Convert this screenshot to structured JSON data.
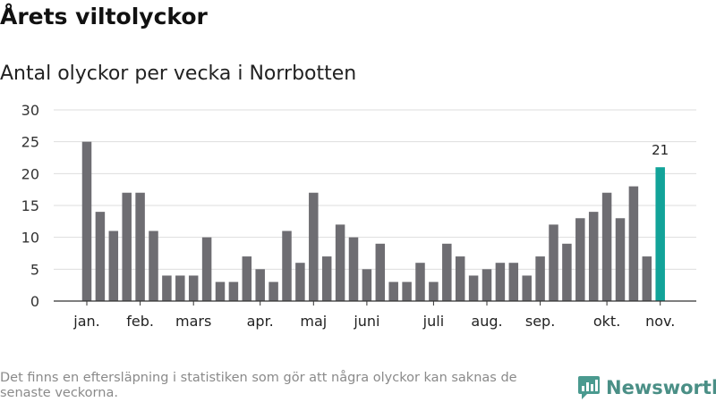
{
  "header": {
    "title": "Årets viltolyckor",
    "subtitle": "Antal olyckor per vecka i Norrbotten"
  },
  "footnote": "Det finns en eftersläpning i statistiken som gör att några olyckor kan saknas de senaste veckorna.",
  "brand": {
    "name": "Newsworthy",
    "icon": "newsworthy-logo-icon",
    "color": "#4a9a8f"
  },
  "colors": {
    "bar": "#6e6d72",
    "highlight": "#12a399",
    "grid": "#dddddd",
    "axis": "#333333"
  },
  "chart_data": {
    "type": "bar",
    "title": "Antal olyckor per vecka i Norrbotten",
    "xlabel": "",
    "ylabel": "",
    "ylim": [
      0,
      30
    ],
    "yticks": [
      0,
      5,
      10,
      15,
      20,
      25,
      30
    ],
    "grid": true,
    "weeks": [
      1,
      2,
      3,
      4,
      5,
      6,
      7,
      8,
      9,
      10,
      11,
      12,
      13,
      14,
      15,
      16,
      17,
      18,
      19,
      20,
      21,
      22,
      23,
      24,
      25,
      26,
      27,
      28,
      29,
      30,
      31,
      32,
      33,
      34,
      35,
      36,
      37,
      38,
      39,
      40,
      41,
      42,
      43,
      44
    ],
    "values": [
      25,
      14,
      11,
      17,
      17,
      11,
      4,
      4,
      4,
      10,
      3,
      3,
      7,
      5,
      3,
      11,
      6,
      17,
      7,
      12,
      10,
      5,
      9,
      3,
      3,
      6,
      3,
      9,
      7,
      4,
      5,
      6,
      6,
      4,
      7,
      12,
      9,
      13,
      14,
      17,
      13,
      18,
      7,
      21
    ],
    "highlight_index": 43,
    "highlight_label": "21",
    "month_labels": [
      {
        "label": "jan.",
        "week": 1
      },
      {
        "label": "feb.",
        "week": 5
      },
      {
        "label": "mars",
        "week": 9
      },
      {
        "label": "apr.",
        "week": 14
      },
      {
        "label": "maj",
        "week": 18
      },
      {
        "label": "juni",
        "week": 22
      },
      {
        "label": "juli",
        "week": 27
      },
      {
        "label": "aug.",
        "week": 31
      },
      {
        "label": "sep.",
        "week": 35
      },
      {
        "label": "okt.",
        "week": 40
      },
      {
        "label": "nov.",
        "week": 44
      }
    ]
  }
}
